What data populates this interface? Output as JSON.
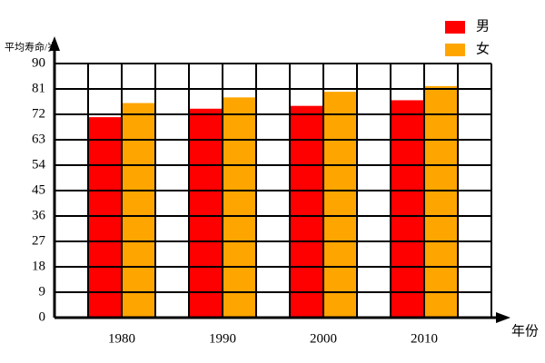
{
  "chart_data": {
    "type": "bar",
    "y_label": "平均寿命/岁",
    "x_label": "年份",
    "categories": [
      "1980",
      "1990",
      "2000",
      "2010"
    ],
    "series": [
      {
        "name": "男",
        "color": "#ff0000",
        "values": [
          71,
          74,
          75,
          77
        ]
      },
      {
        "name": "女",
        "color": "#ffa500",
        "values": [
          76,
          78,
          80,
          82
        ]
      }
    ],
    "ylim": [
      0,
      90
    ],
    "yticks": [
      0,
      9,
      18,
      27,
      36,
      45,
      54,
      63,
      72,
      81,
      90
    ],
    "grid": true,
    "legend": "top-right"
  }
}
